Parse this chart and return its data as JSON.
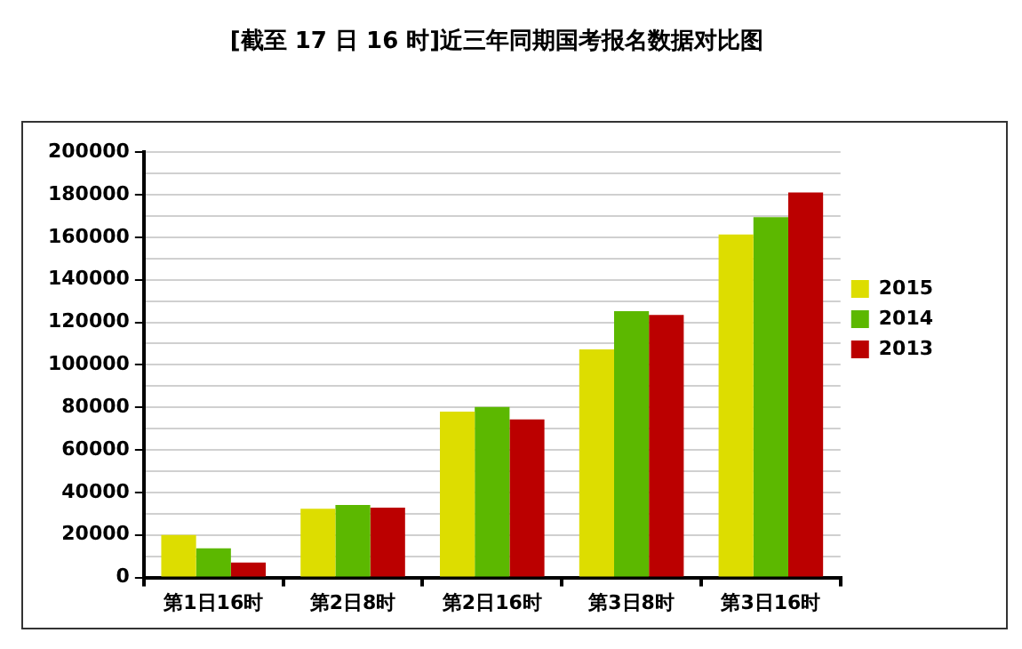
{
  "chart_data": {
    "type": "bar",
    "title": "[截至 17 日 16 时]近三年同期国考报名数据对比图",
    "categories": [
      "第1日16时",
      "第2日8时",
      "第2日16时",
      "第3日8时",
      "第3日16时"
    ],
    "series": [
      {
        "name": "2015",
        "color": "#dddd00",
        "values": [
          20000,
          32300,
          78000,
          107300,
          161300
        ]
      },
      {
        "name": "2014",
        "color": "#5cb800",
        "values": [
          13700,
          34100,
          80200,
          125300,
          169500
        ]
      },
      {
        "name": "2013",
        "color": "#bb0000",
        "values": [
          7000,
          32900,
          74400,
          123500,
          181100
        ]
      }
    ],
    "ylim": [
      0,
      200000
    ],
    "yticks": [
      0,
      {
        "value": 10000,
        "label": null
      },
      20000,
      {
        "value": 30000,
        "label": null
      },
      40000,
      {
        "value": 50000,
        "label": null
      },
      60000,
      {
        "value": 70000,
        "label": null
      },
      80000,
      {
        "value": 90000,
        "label": null
      },
      100000,
      {
        "value": 110000,
        "label": null
      },
      120000,
      {
        "value": 130000,
        "label": null
      },
      140000,
      {
        "value": 150000,
        "label": null
      },
      160000,
      {
        "value": 170000,
        "label": null
      },
      180000,
      {
        "value": 190000,
        "label": null
      },
      200000
    ],
    "grid": "y",
    "legend": "right"
  }
}
